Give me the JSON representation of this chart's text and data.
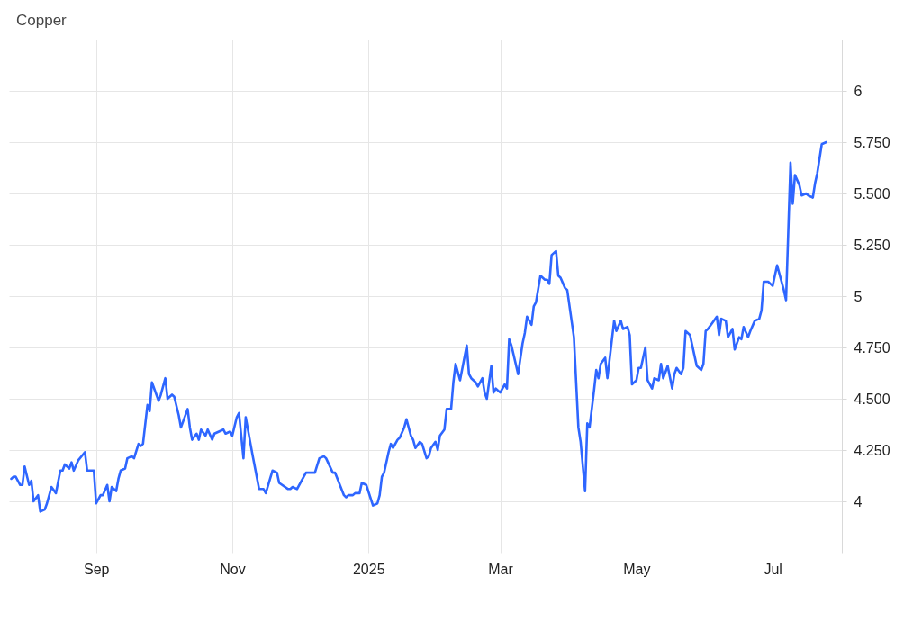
{
  "chart_data": {
    "type": "line",
    "title": "Copper",
    "color": "#2e66ff",
    "grid": true,
    "xlim": [
      "2024-07-24",
      "2025-08-01"
    ],
    "ylim": [
      3.75,
      6.25
    ],
    "xticks": [
      {
        "value": "2024-09-01",
        "label": "Sep"
      },
      {
        "value": "2024-11-01",
        "label": "Nov"
      },
      {
        "value": "2025-01-01",
        "label": "2025"
      },
      {
        "value": "2025-03-01",
        "label": "Mar"
      },
      {
        "value": "2025-05-01",
        "label": "May"
      },
      {
        "value": "2025-07-01",
        "label": "Jul"
      }
    ],
    "yticks": [
      4,
      {
        "value": 4.25,
        "label": "4.250"
      },
      {
        "value": 4.5,
        "label": "4.500"
      },
      {
        "value": 4.75,
        "label": "4.750"
      },
      5,
      {
        "value": 5.25,
        "label": "5.250"
      },
      {
        "value": 5.5,
        "label": "5.500"
      },
      {
        "value": 5.75,
        "label": "5.750"
      },
      6
    ],
    "x": [
      "2024-07-25",
      "2024-07-26",
      "2024-07-27",
      "2024-07-29",
      "2024-07-30",
      "2024-07-31",
      "2024-08-02",
      "2024-08-03",
      "2024-08-04",
      "2024-08-06",
      "2024-08-07",
      "2024-08-09",
      "2024-08-10",
      "2024-08-12",
      "2024-08-14",
      "2024-08-16",
      "2024-08-17",
      "2024-08-18",
      "2024-08-20",
      "2024-08-21",
      "2024-08-22",
      "2024-08-24",
      "2024-08-27",
      "2024-08-28",
      "2024-08-31",
      "2024-09-01",
      "2024-09-03",
      "2024-09-04",
      "2024-09-06",
      "2024-09-07",
      "2024-09-08",
      "2024-09-10",
      "2024-09-11",
      "2024-09-12",
      "2024-09-14",
      "2024-09-15",
      "2024-09-17",
      "2024-09-18",
      "2024-09-20",
      "2024-09-21",
      "2024-09-22",
      "2024-09-24",
      "2024-09-25",
      "2024-09-26",
      "2024-09-29",
      "2024-09-30",
      "2024-10-02",
      "2024-10-03",
      "2024-10-05",
      "2024-10-06",
      "2024-10-08",
      "2024-10-09",
      "2024-10-12",
      "2024-10-13",
      "2024-10-14",
      "2024-10-16",
      "2024-10-17",
      "2024-10-18",
      "2024-10-20",
      "2024-10-21",
      "2024-10-23",
      "2024-10-24",
      "2024-10-26",
      "2024-10-28",
      "2024-10-29",
      "2024-10-31",
      "2024-11-01",
      "2024-11-03",
      "2024-11-04",
      "2024-11-06",
      "2024-11-07",
      "2024-11-09",
      "2024-11-10",
      "2024-11-13",
      "2024-11-15",
      "2024-11-16",
      "2024-11-19",
      "2024-11-21",
      "2024-11-22",
      "2024-11-26",
      "2024-11-27",
      "2024-11-28",
      "2024-11-30",
      "2024-12-02",
      "2024-12-04",
      "2024-12-08",
      "2024-12-10",
      "2024-12-12",
      "2024-12-13",
      "2024-12-16",
      "2024-12-17",
      "2024-12-21",
      "2024-12-22",
      "2024-12-23",
      "2024-12-25",
      "2024-12-26",
      "2024-12-28",
      "2024-12-29",
      "2024-12-31",
      "2025-01-03",
      "2025-01-05",
      "2025-01-06",
      "2025-01-07",
      "2025-01-08",
      "2025-01-10",
      "2025-01-11",
      "2025-01-12",
      "2025-01-14",
      "2025-01-15",
      "2025-01-17",
      "2025-01-18",
      "2025-01-20",
      "2025-01-21",
      "2025-01-22",
      "2025-01-24",
      "2025-01-25",
      "2025-01-27",
      "2025-01-28",
      "2025-01-29",
      "2025-01-31",
      "2025-02-01",
      "2025-02-02",
      "2025-02-04",
      "2025-02-05",
      "2025-02-07",
      "2025-02-08",
      "2025-02-09",
      "2025-02-11",
      "2025-02-14",
      "2025-02-15",
      "2025-02-16",
      "2025-02-18",
      "2025-02-19",
      "2025-02-21",
      "2025-02-22",
      "2025-02-23",
      "2025-02-25",
      "2025-02-26",
      "2025-02-27",
      "2025-03-01",
      "2025-03-03",
      "2025-03-04",
      "2025-03-05",
      "2025-03-06",
      "2025-03-09",
      "2025-03-11",
      "2025-03-12",
      "2025-03-13",
      "2025-03-15",
      "2025-03-16",
      "2025-03-17",
      "2025-03-19",
      "2025-03-21",
      "2025-03-22",
      "2025-03-23",
      "2025-03-24",
      "2025-03-26",
      "2025-03-27",
      "2025-03-28",
      "2025-03-30",
      "2025-03-31",
      "2025-04-03",
      "2025-04-05",
      "2025-04-06",
      "2025-04-08",
      "2025-04-09",
      "2025-04-10",
      "2025-04-12",
      "2025-04-13",
      "2025-04-14",
      "2025-04-15",
      "2025-04-17",
      "2025-04-18",
      "2025-04-21",
      "2025-04-22",
      "2025-04-24",
      "2025-04-25",
      "2025-04-27",
      "2025-04-28",
      "2025-04-29",
      "2025-05-01",
      "2025-05-02",
      "2025-05-03",
      "2025-05-05",
      "2025-05-06",
      "2025-05-08",
      "2025-05-09",
      "2025-05-11",
      "2025-05-12",
      "2025-05-13",
      "2025-05-15",
      "2025-05-17",
      "2025-05-18",
      "2025-05-19",
      "2025-05-21",
      "2025-05-22",
      "2025-05-23",
      "2025-05-25",
      "2025-05-27",
      "2025-05-28",
      "2025-05-30",
      "2025-05-31",
      "2025-06-01",
      "2025-06-02",
      "2025-06-04",
      "2025-06-06",
      "2025-06-07",
      "2025-06-08",
      "2025-06-10",
      "2025-06-11",
      "2025-06-13",
      "2025-06-14",
      "2025-06-16",
      "2025-06-17",
      "2025-06-18",
      "2025-06-20",
      "2025-06-21",
      "2025-06-23",
      "2025-06-25",
      "2025-06-26",
      "2025-06-27",
      "2025-06-29",
      "2025-07-01",
      "2025-07-03",
      "2025-07-04",
      "2025-07-06",
      "2025-07-07",
      "2025-07-09",
      "2025-07-10",
      "2025-07-11",
      "2025-07-13",
      "2025-07-14",
      "2025-07-16",
      "2025-07-17",
      "2025-07-19",
      "2025-07-20",
      "2025-07-21",
      "2025-07-23",
      "2025-07-25"
    ],
    "values": [
      4.11,
      4.12,
      4.12,
      4.08,
      4.08,
      4.17,
      4.08,
      4.1,
      4.0,
      4.03,
      3.95,
      3.96,
      3.99,
      4.07,
      4.04,
      4.15,
      4.15,
      4.18,
      4.16,
      4.19,
      4.15,
      4.2,
      4.24,
      4.15,
      4.15,
      3.99,
      4.03,
      4.03,
      4.08,
      4.0,
      4.07,
      4.05,
      4.11,
      4.15,
      4.16,
      4.21,
      4.22,
      4.21,
      4.28,
      4.27,
      4.28,
      4.47,
      4.44,
      4.58,
      4.49,
      4.52,
      4.6,
      4.5,
      4.52,
      4.51,
      4.42,
      4.36,
      4.45,
      4.36,
      4.3,
      4.33,
      4.3,
      4.35,
      4.32,
      4.35,
      4.3,
      4.33,
      4.34,
      4.35,
      4.33,
      4.34,
      4.32,
      4.41,
      4.43,
      4.21,
      4.41,
      4.29,
      4.23,
      4.06,
      4.06,
      4.04,
      4.15,
      4.14,
      4.09,
      4.06,
      4.06,
      4.07,
      4.06,
      4.1,
      4.14,
      4.14,
      4.21,
      4.22,
      4.21,
      4.14,
      4.14,
      4.03,
      4.02,
      4.03,
      4.03,
      4.04,
      4.04,
      4.09,
      4.08,
      3.98,
      3.99,
      4.03,
      4.12,
      4.14,
      4.24,
      4.28,
      4.26,
      4.3,
      4.31,
      4.36,
      4.4,
      4.32,
      4.3,
      4.26,
      4.29,
      4.28,
      4.21,
      4.22,
      4.26,
      4.29,
      4.25,
      4.32,
      4.35,
      4.45,
      4.45,
      4.58,
      4.67,
      4.59,
      4.76,
      4.62,
      4.6,
      4.58,
      4.56,
      4.6,
      4.53,
      4.5,
      4.66,
      4.53,
      4.55,
      4.53,
      4.57,
      4.55,
      4.79,
      4.76,
      4.62,
      4.77,
      4.82,
      4.9,
      4.86,
      4.95,
      4.97,
      5.1,
      5.08,
      5.08,
      5.06,
      5.2,
      5.22,
      5.1,
      5.09,
      5.04,
      5.03,
      4.8,
      4.36,
      4.29,
      4.05,
      4.38,
      4.36,
      4.54,
      4.64,
      4.6,
      4.67,
      4.7,
      4.6,
      4.88,
      4.83,
      4.88,
      4.84,
      4.85,
      4.81,
      4.57,
      4.59,
      4.65,
      4.65,
      4.75,
      4.59,
      4.55,
      4.6,
      4.59,
      4.67,
      4.6,
      4.66,
      4.55,
      4.62,
      4.65,
      4.62,
      4.65,
      4.83,
      4.81,
      4.71,
      4.66,
      4.64,
      4.67,
      4.83,
      4.84,
      4.87,
      4.9,
      4.81,
      4.89,
      4.88,
      4.8,
      4.84,
      4.74,
      4.8,
      4.79,
      4.85,
      4.8,
      4.83,
      4.88,
      4.89,
      4.93,
      5.07,
      5.07,
      5.05,
      5.15,
      5.11,
      5.03,
      4.98,
      5.65,
      5.45,
      5.59,
      5.54,
      5.49,
      5.5,
      5.49,
      5.48,
      5.55,
      5.6,
      5.74,
      5.75
    ]
  }
}
